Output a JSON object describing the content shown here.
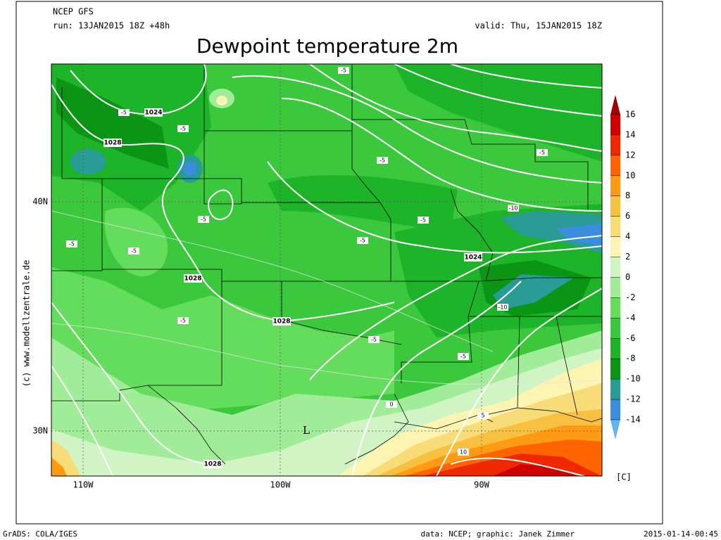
{
  "header": {
    "model": "NCEP GFS",
    "run": "run: 13JAN2015 18Z +48h",
    "valid": "valid: Thu, 15JAN2015 18Z",
    "title": "Dewpoint temperature 2m"
  },
  "map": {
    "lat_labels": [
      "40N",
      "30N"
    ],
    "lon_labels": [
      "110W",
      "100W",
      "90W"
    ],
    "credit": "(c) www.modellzentrale.de",
    "low_label": "L",
    "isobar_labels": [
      "1024",
      "1028",
      "1028",
      "1028",
      "1024",
      "1028"
    ],
    "dewpoint_labels": [
      "-5",
      "-5",
      "-5",
      "-5",
      "-5",
      "-5",
      "-5",
      "-5",
      "-5",
      "-5",
      "-5",
      "-5",
      "-5",
      "-10",
      "-10",
      "0",
      "5",
      "10"
    ]
  },
  "colorbar": {
    "levels": [
      16,
      14,
      12,
      10,
      8,
      6,
      4,
      2,
      0,
      -2,
      -4,
      -6,
      -8,
      -10,
      -12,
      -14
    ],
    "unit": "[C]",
    "colors": [
      "#a00000",
      "#d00000",
      "#f02800",
      "#ff6400",
      "#ff9a14",
      "#f8c040",
      "#f8dc78",
      "#fcf4b0",
      "#d0f4c4",
      "#a0ec98",
      "#64dc5c",
      "#3cc83c",
      "#1eb42a",
      "#0a9614",
      "#2a9c96",
      "#3c8ce0",
      "#64b4f0"
    ]
  },
  "footer": {
    "left": "GrADS: COLA/IGES",
    "center": "data: NCEP; graphic: Janek Zimmer",
    "right": "2015-01-14-00:45"
  }
}
